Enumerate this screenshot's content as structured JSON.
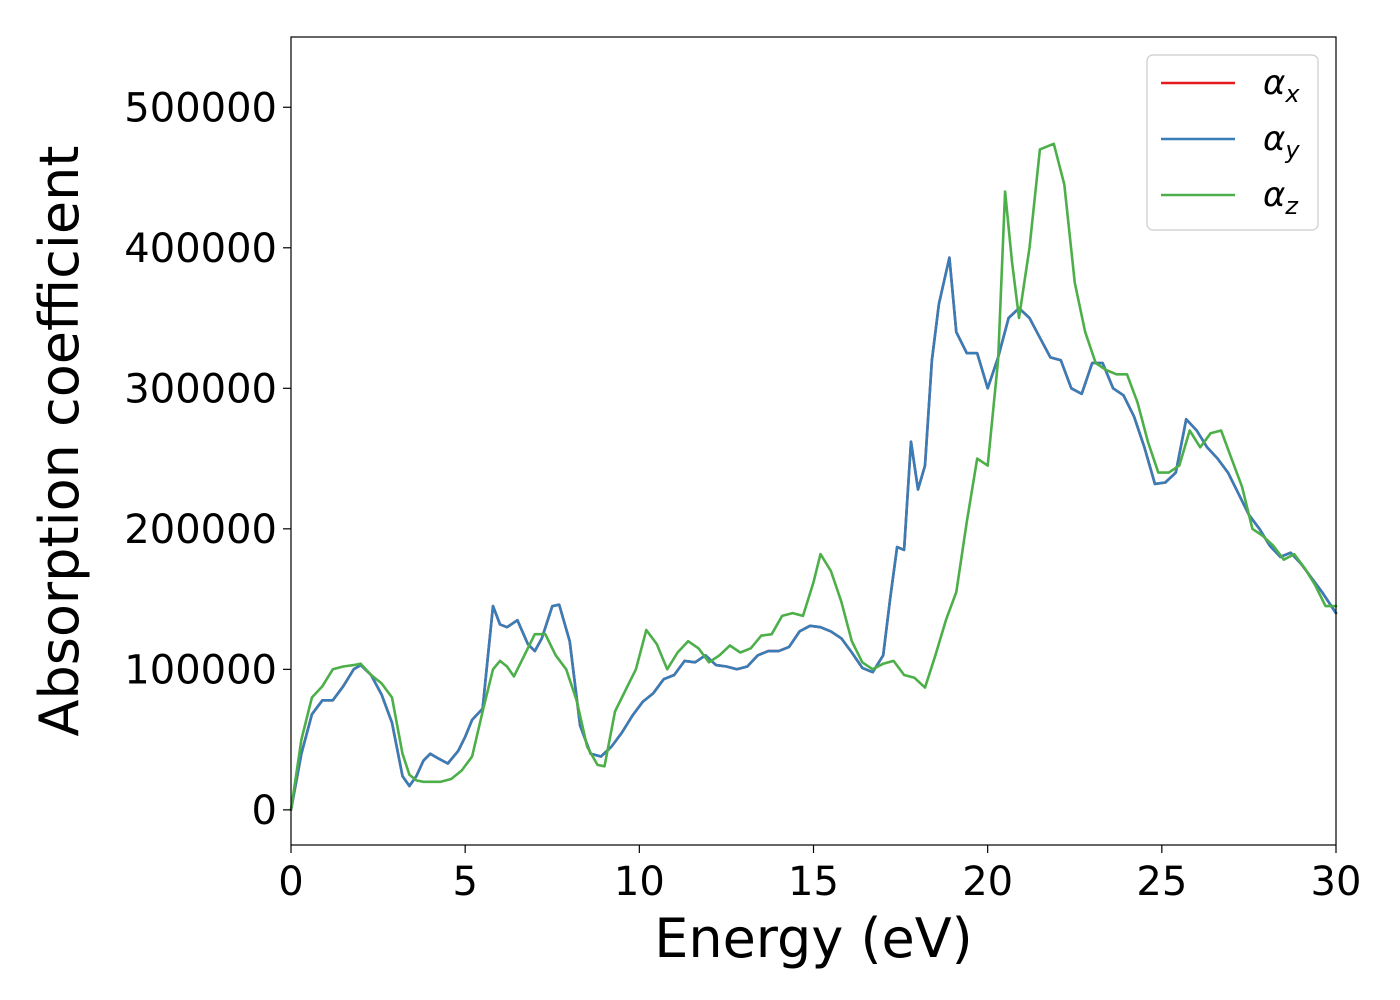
{
  "chart_data": {
    "type": "line",
    "title": "",
    "xlabel": "Energy (eV)",
    "ylabel": "Absorption coefficient",
    "xlim": [
      0,
      30
    ],
    "ylim": [
      -25000,
      550000
    ],
    "xticks": [
      0,
      5,
      10,
      15,
      20,
      25,
      30
    ],
    "yticks": [
      0,
      100000,
      200000,
      300000,
      400000,
      500000
    ],
    "grid": false,
    "legend_position": "top-right",
    "series": [
      {
        "name": "α",
        "subscript": "x",
        "color": "#e41a1c",
        "x": [
          0,
          0.3,
          0.6,
          0.9,
          1.2,
          1.5,
          1.8,
          2.0,
          2.3,
          2.6,
          2.9,
          3.2,
          3.4,
          3.6,
          3.8,
          4.0,
          4.2,
          4.5,
          4.8,
          5.0,
          5.2,
          5.5,
          5.8,
          6.0,
          6.2,
          6.5,
          6.8,
          7.0,
          7.2,
          7.5,
          7.7,
          8.0,
          8.3,
          8.6,
          8.9,
          9.2,
          9.5,
          9.8,
          10.1,
          10.4,
          10.7,
          11.0,
          11.3,
          11.6,
          11.9,
          12.2,
          12.5,
          12.8,
          13.1,
          13.4,
          13.7,
          14.0,
          14.3,
          14.6,
          14.9,
          15.2,
          15.5,
          15.8,
          16.1,
          16.4,
          16.7,
          17.0,
          17.2,
          17.4,
          17.6,
          17.8,
          18.0,
          18.2,
          18.4,
          18.6,
          18.9,
          19.1,
          19.4,
          19.7,
          20.0,
          20.3,
          20.6,
          20.9,
          21.2,
          21.5,
          21.8,
          22.1,
          22.4,
          22.7,
          23.0,
          23.3,
          23.6,
          23.9,
          24.2,
          24.5,
          24.8,
          25.1,
          25.4,
          25.7,
          26.0,
          26.3,
          26.6,
          26.9,
          27.2,
          27.5,
          27.8,
          28.1,
          28.4,
          28.7,
          29.0,
          29.3,
          29.6,
          30.0
        ],
        "values": [
          0,
          40000,
          68000,
          78000,
          78000,
          88000,
          100000,
          103000,
          96000,
          82000,
          62000,
          24000,
          17000,
          24000,
          35000,
          40000,
          37000,
          33000,
          42000,
          52000,
          64000,
          72000,
          145000,
          132000,
          130000,
          135000,
          118000,
          113000,
          122000,
          145000,
          146000,
          120000,
          60000,
          40000,
          38000,
          45000,
          55000,
          67000,
          77000,
          83000,
          93000,
          96000,
          106000,
          105000,
          110000,
          103000,
          102000,
          100000,
          102000,
          110000,
          113000,
          113000,
          116000,
          127000,
          131000,
          130000,
          127000,
          122000,
          112000,
          101000,
          98000,
          110000,
          150000,
          187000,
          185000,
          262000,
          228000,
          245000,
          320000,
          360000,
          393000,
          340000,
          325000,
          325000,
          300000,
          322000,
          350000,
          357000,
          350000,
          336000,
          322000,
          320000,
          300000,
          296000,
          318000,
          318000,
          300000,
          295000,
          280000,
          258000,
          232000,
          233000,
          240000,
          278000,
          270000,
          258000,
          250000,
          240000,
          225000,
          210000,
          200000,
          188000,
          180000,
          183000,
          175000,
          165000,
          155000,
          140000
        ]
      },
      {
        "name": "α",
        "subscript": "y",
        "color": "#377eb8",
        "x": [
          0,
          0.3,
          0.6,
          0.9,
          1.2,
          1.5,
          1.8,
          2.0,
          2.3,
          2.6,
          2.9,
          3.2,
          3.4,
          3.6,
          3.8,
          4.0,
          4.2,
          4.5,
          4.8,
          5.0,
          5.2,
          5.5,
          5.8,
          6.0,
          6.2,
          6.5,
          6.8,
          7.0,
          7.2,
          7.5,
          7.7,
          8.0,
          8.3,
          8.6,
          8.9,
          9.2,
          9.5,
          9.8,
          10.1,
          10.4,
          10.7,
          11.0,
          11.3,
          11.6,
          11.9,
          12.2,
          12.5,
          12.8,
          13.1,
          13.4,
          13.7,
          14.0,
          14.3,
          14.6,
          14.9,
          15.2,
          15.5,
          15.8,
          16.1,
          16.4,
          16.7,
          17.0,
          17.2,
          17.4,
          17.6,
          17.8,
          18.0,
          18.2,
          18.4,
          18.6,
          18.9,
          19.1,
          19.4,
          19.7,
          20.0,
          20.3,
          20.6,
          20.9,
          21.2,
          21.5,
          21.8,
          22.1,
          22.4,
          22.7,
          23.0,
          23.3,
          23.6,
          23.9,
          24.2,
          24.5,
          24.8,
          25.1,
          25.4,
          25.7,
          26.0,
          26.3,
          26.6,
          26.9,
          27.2,
          27.5,
          27.8,
          28.1,
          28.4,
          28.7,
          29.0,
          29.3,
          29.6,
          30.0
        ],
        "values": [
          0,
          40000,
          68000,
          78000,
          78000,
          88000,
          100000,
          103000,
          96000,
          82000,
          62000,
          24000,
          17000,
          24000,
          35000,
          40000,
          37000,
          33000,
          42000,
          52000,
          64000,
          72000,
          145000,
          132000,
          130000,
          135000,
          118000,
          113000,
          122000,
          145000,
          146000,
          120000,
          60000,
          40000,
          38000,
          45000,
          55000,
          67000,
          77000,
          83000,
          93000,
          96000,
          106000,
          105000,
          110000,
          103000,
          102000,
          100000,
          102000,
          110000,
          113000,
          113000,
          116000,
          127000,
          131000,
          130000,
          127000,
          122000,
          112000,
          101000,
          98000,
          110000,
          150000,
          187000,
          185000,
          262000,
          228000,
          245000,
          320000,
          360000,
          393000,
          340000,
          325000,
          325000,
          300000,
          322000,
          350000,
          357000,
          350000,
          336000,
          322000,
          320000,
          300000,
          296000,
          318000,
          318000,
          300000,
          295000,
          280000,
          258000,
          232000,
          233000,
          240000,
          278000,
          270000,
          258000,
          250000,
          240000,
          225000,
          210000,
          200000,
          188000,
          180000,
          183000,
          175000,
          165000,
          155000,
          140000
        ]
      },
      {
        "name": "α",
        "subscript": "z",
        "color": "#4daf4a",
        "x": [
          0,
          0.3,
          0.6,
          0.9,
          1.2,
          1.5,
          1.8,
          2.0,
          2.3,
          2.6,
          2.9,
          3.2,
          3.4,
          3.6,
          3.8,
          4.0,
          4.3,
          4.6,
          4.9,
          5.2,
          5.5,
          5.8,
          6.0,
          6.2,
          6.4,
          6.7,
          7.0,
          7.3,
          7.6,
          7.9,
          8.2,
          8.5,
          8.8,
          9.0,
          9.3,
          9.6,
          9.9,
          10.2,
          10.5,
          10.8,
          11.1,
          11.4,
          11.7,
          12.0,
          12.3,
          12.6,
          12.9,
          13.2,
          13.5,
          13.8,
          14.1,
          14.4,
          14.7,
          15.0,
          15.2,
          15.5,
          15.8,
          16.1,
          16.4,
          16.7,
          17.0,
          17.3,
          17.6,
          17.9,
          18.2,
          18.5,
          18.8,
          19.1,
          19.4,
          19.7,
          20.0,
          20.3,
          20.5,
          20.7,
          20.9,
          21.2,
          21.5,
          21.7,
          21.9,
          22.2,
          22.5,
          22.8,
          23.1,
          23.4,
          23.7,
          24.0,
          24.3,
          24.6,
          24.9,
          25.2,
          25.5,
          25.8,
          26.1,
          26.4,
          26.7,
          27.0,
          27.3,
          27.6,
          27.9,
          28.2,
          28.5,
          28.8,
          29.1,
          29.4,
          29.7,
          30.0
        ],
        "values": [
          0,
          50000,
          80000,
          88000,
          100000,
          102000,
          103000,
          104000,
          96000,
          90000,
          80000,
          40000,
          25000,
          21000,
          20000,
          20000,
          20000,
          22000,
          28000,
          38000,
          70000,
          100000,
          106000,
          102000,
          95000,
          110000,
          125000,
          125000,
          110000,
          100000,
          78000,
          45000,
          32000,
          31000,
          70000,
          85000,
          100000,
          128000,
          118000,
          100000,
          112000,
          120000,
          115000,
          105000,
          110000,
          117000,
          112000,
          115000,
          124000,
          125000,
          138000,
          140000,
          138000,
          162000,
          182000,
          170000,
          148000,
          120000,
          105000,
          100000,
          104000,
          106000,
          96000,
          94000,
          87000,
          110000,
          135000,
          155000,
          205000,
          250000,
          245000,
          320000,
          440000,
          390000,
          350000,
          400000,
          470000,
          472000,
          474000,
          445000,
          375000,
          340000,
          318000,
          313000,
          310000,
          310000,
          290000,
          262000,
          240000,
          240000,
          245000,
          270000,
          258000,
          268000,
          270000,
          250000,
          230000,
          200000,
          195000,
          188000,
          178000,
          182000,
          172000,
          160000,
          145000,
          145000
        ]
      }
    ]
  }
}
